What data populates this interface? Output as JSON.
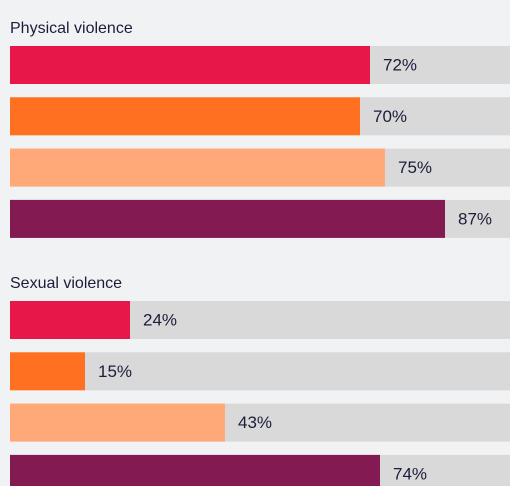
{
  "chart_data": [
    {
      "type": "bar",
      "title": "Physical violence",
      "values": [
        72,
        70,
        75,
        87
      ],
      "value_labels": [
        "72%",
        "70%",
        "75%",
        "87%"
      ],
      "colors": [
        "#e8174a",
        "#ff7120",
        "#ffa878",
        "#841a52"
      ],
      "xlim": [
        0,
        100
      ]
    },
    {
      "type": "bar",
      "title": "Sexual violence",
      "values": [
        24,
        15,
        43,
        74
      ],
      "value_labels": [
        "24%",
        "15%",
        "43%",
        "74%"
      ],
      "colors": [
        "#e8174a",
        "#ff7120",
        "#ffa878",
        "#841a52"
      ],
      "xlim": [
        0,
        100
      ]
    }
  ]
}
